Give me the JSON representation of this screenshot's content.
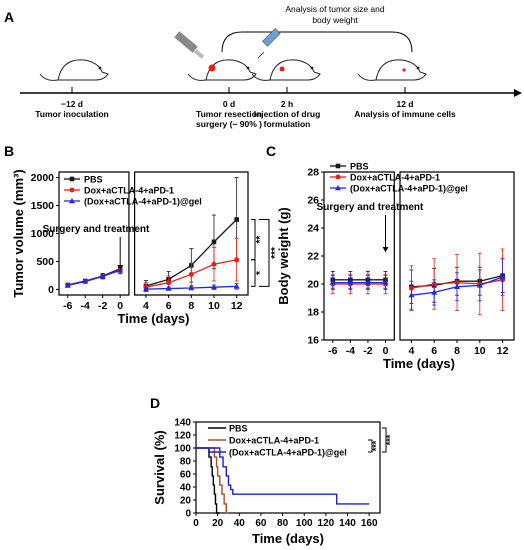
{
  "panels": {
    "A": "A",
    "B": "B",
    "C": "C",
    "D": "D"
  },
  "timeline": {
    "top_label_1": "Analysis of tumor size and",
    "top_label_2": "body weight",
    "events": [
      {
        "time": "−12 d",
        "label_1": "Tumor inoculation",
        "label_2": ""
      },
      {
        "time": "0 d",
        "label_1": "Tumor resection",
        "label_2": "surgery (~ 90% )"
      },
      {
        "time": "2 h",
        "label_1": "Injection of drug",
        "label_2": "formulation"
      },
      {
        "time": "12 d",
        "label_1": "Analysis of immune cells",
        "label_2": ""
      }
    ]
  },
  "colors": {
    "pbs": "#1a1a1a",
    "dox": "#e8201c",
    "gel": "#1f2ae0",
    "surv_pbs": "#000000",
    "surv_dox": "#a0522d",
    "surv_gel": "#2020c8"
  },
  "chart_data": [
    {
      "type": "line",
      "title": "",
      "xlabel": "Time (days)",
      "ylabel": "Tumor volume (mm³)",
      "xlim": [
        -7,
        13
      ],
      "ylim": [
        -100,
        2100
      ],
      "xticks": [
        -6,
        -4,
        -2,
        0,
        4,
        6,
        8,
        10,
        12
      ],
      "yticks": [
        0,
        500,
        1000,
        1500,
        2000
      ],
      "annotation": "Surgery and treatment",
      "significance": [
        "**",
        "***",
        "*"
      ],
      "series": [
        {
          "name": "PBS",
          "color": "#1a1a1a",
          "marker": "square",
          "pre": {
            "x": [
              -6,
              -4,
              -2,
              0
            ],
            "y": [
              80,
              150,
              240,
              370
            ],
            "err": [
              15,
              30,
              45,
              60
            ]
          },
          "post": {
            "x": [
              4,
              6,
              8,
              10,
              12
            ],
            "y": [
              60,
              180,
              430,
              850,
              1250
            ],
            "err": [
              100,
              140,
              300,
              480,
              750
            ]
          }
        },
        {
          "name": "Dox+aCTLA-4+aPD-1",
          "color": "#e8201c",
          "marker": "circle",
          "pre": {
            "x": [
              -6,
              -4,
              -2,
              0
            ],
            "y": [
              75,
              140,
              230,
              350
            ],
            "err": [
              15,
              30,
              45,
              60
            ]
          },
          "post": {
            "x": [
              4,
              6,
              8,
              10,
              12
            ],
            "y": [
              40,
              120,
              270,
              450,
              530
            ],
            "err": [
              80,
              120,
              200,
              300,
              380
            ]
          }
        },
        {
          "name": "(Dox+aCTLA-4+aPD-1)@gel",
          "color": "#1f2ae0",
          "marker": "triangle",
          "pre": {
            "x": [
              -6,
              -4,
              -2,
              0
            ],
            "y": [
              70,
              145,
              235,
              340
            ],
            "err": [
              15,
              30,
              45,
              60
            ]
          },
          "post": {
            "x": [
              4,
              6,
              8,
              10,
              12
            ],
            "y": [
              5,
              15,
              25,
              40,
              55
            ],
            "err": [
              20,
              25,
              30,
              40,
              50
            ]
          }
        }
      ]
    },
    {
      "type": "line",
      "title": "",
      "xlabel": "Time (days)",
      "ylabel": "Body weight (g)",
      "xlim": [
        -7,
        13
      ],
      "ylim": [
        16,
        28
      ],
      "xticks": [
        -6,
        -4,
        -2,
        0,
        4,
        6,
        8,
        10,
        12
      ],
      "yticks": [
        16,
        18,
        20,
        22,
        24,
        26,
        28
      ],
      "annotation": "Surgery and treatment",
      "series": [
        {
          "name": "PBS",
          "color": "#1a1a1a",
          "marker": "square",
          "pre": {
            "x": [
              -6,
              -4,
              -2,
              0
            ],
            "y": [
              20.3,
              20.3,
              20.3,
              20.3
            ],
            "err": [
              0.6,
              0.6,
              0.6,
              0.6
            ]
          },
          "post": {
            "x": [
              4,
              6,
              8,
              10,
              12
            ],
            "y": [
              19.8,
              19.9,
              20.2,
              20.2,
              20.6
            ],
            "err": [
              1.2,
              1.2,
              1.0,
              1.0,
              1.2
            ]
          }
        },
        {
          "name": "Dox+aCTLA-4+aPD-1",
          "color": "#e8201c",
          "marker": "circle",
          "pre": {
            "x": [
              -6,
              -4,
              -2,
              0
            ],
            "y": [
              20.0,
              20.0,
              20.0,
              20.0
            ],
            "err": [
              0.7,
              0.7,
              0.7,
              0.7
            ]
          },
          "post": {
            "x": [
              4,
              6,
              8,
              10,
              12
            ],
            "y": [
              19.7,
              20.0,
              20.1,
              20.0,
              20.3
            ],
            "err": [
              1.6,
              1.8,
              2.0,
              2.2,
              2.2
            ]
          }
        },
        {
          "name": "(Dox+aCTLA-4+aPD-1)@gel",
          "color": "#1f2ae0",
          "marker": "triangle",
          "pre": {
            "x": [
              -6,
              -4,
              -2,
              0
            ],
            "y": [
              20.1,
              20.1,
              20.1,
              20.1
            ],
            "err": [
              0.5,
              0.5,
              0.5,
              0.5
            ]
          },
          "post": {
            "x": [
              4,
              6,
              8,
              10,
              12
            ],
            "y": [
              19.2,
              19.4,
              19.8,
              19.9,
              20.5
            ],
            "err": [
              1.0,
              0.9,
              1.0,
              1.1,
              1.3
            ]
          }
        }
      ]
    },
    {
      "type": "line",
      "title": "",
      "xlabel": "Time (days)",
      "ylabel": "Survival (%)",
      "xlim": [
        0,
        170
      ],
      "ylim": [
        0,
        140
      ],
      "xticks": [
        0,
        20,
        40,
        60,
        80,
        100,
        120,
        140,
        160
      ],
      "yticks": [
        0,
        20,
        40,
        60,
        80,
        100,
        120,
        140
      ],
      "significance": [
        "***",
        "***"
      ],
      "series": [
        {
          "name": "PBS",
          "color": "#000000",
          "x": [
            0,
            12,
            12,
            14,
            14,
            15,
            15,
            16,
            16,
            17,
            17,
            18,
            18,
            19,
            19,
            20,
            20,
            21,
            21,
            22
          ],
          "y": [
            100,
            100,
            86,
            86,
            71,
            71,
            57,
            57,
            43,
            43,
            29,
            29,
            14,
            14,
            0,
            0,
            0,
            0,
            0,
            0
          ]
        },
        {
          "name": "Dox+aCTLA-4+aPD-1",
          "color": "#a0522d",
          "x": [
            0,
            17,
            17,
            19,
            19,
            20,
            20,
            22,
            22,
            24,
            24,
            26,
            26,
            28,
            28,
            30
          ],
          "y": [
            100,
            100,
            86,
            86,
            71,
            71,
            57,
            57,
            43,
            43,
            29,
            29,
            14,
            14,
            0,
            0
          ]
        },
        {
          "name": "(Dox+aCTLA-4+aPD-1)@gel",
          "color": "#2020c8",
          "x": [
            0,
            22,
            22,
            25,
            25,
            28,
            28,
            30,
            30,
            32,
            32,
            34,
            34,
            130,
            130,
            160
          ],
          "y": [
            100,
            100,
            86,
            86,
            71,
            71,
            57,
            57,
            43,
            43,
            36,
            36,
            29,
            29,
            14,
            14
          ]
        }
      ]
    }
  ]
}
